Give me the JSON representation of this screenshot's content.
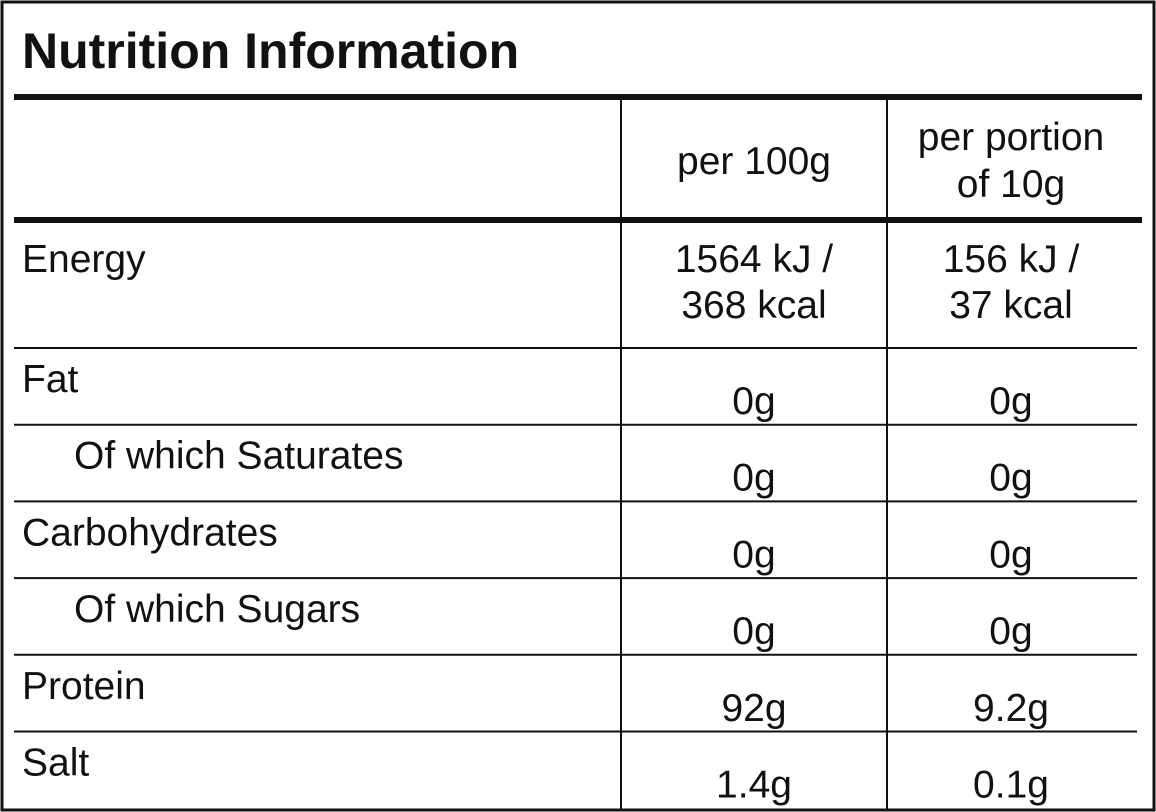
{
  "title": "Nutrition Information",
  "table": {
    "header": [
      [
        "per 100g"
      ],
      [
        "per portion",
        "of 10g"
      ]
    ],
    "rows": [
      {
        "label": "Energy",
        "values": [
          [
            "1564 kJ /",
            "368 kcal"
          ],
          [
            "156 kJ /",
            "37 kcal"
          ]
        ]
      },
      {
        "label": "Fat",
        "values": [
          [
            "0g"
          ],
          [
            "0g"
          ]
        ],
        "children": [
          {
            "label": "Of which Saturates",
            "values": [
              [
                "0g"
              ],
              [
                "0g"
              ]
            ]
          }
        ]
      },
      {
        "label": "Carbohydrates",
        "values": [
          [
            "0g"
          ],
          [
            "0g"
          ]
        ],
        "children": [
          {
            "label": "Of which Sugars",
            "values": [
              [
                "0g"
              ],
              [
                "0g"
              ]
            ]
          }
        ]
      },
      {
        "label": "Protein",
        "values": [
          [
            "92g"
          ],
          [
            "9.2g"
          ]
        ]
      },
      {
        "label": "Salt",
        "values": [
          [
            "1.4g"
          ],
          [
            "0.1g"
          ]
        ]
      }
    ]
  }
}
